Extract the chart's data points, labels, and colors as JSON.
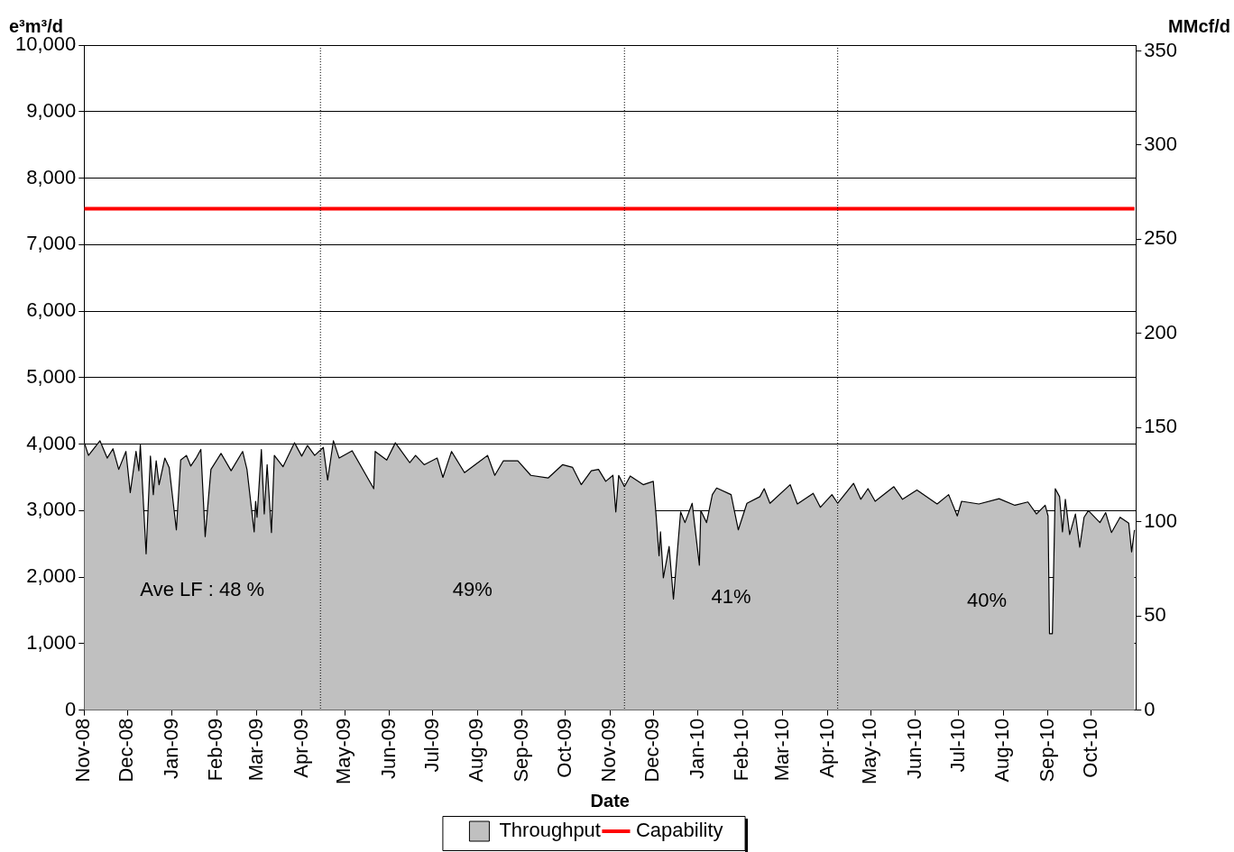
{
  "chart_data": {
    "type": "area",
    "xlabel": "Date",
    "ylabel": "e³m³/d",
    "y2label": "MMcf/d",
    "xlim": [
      "2008-11-01",
      "2010-11-01"
    ],
    "xticks": [
      {
        "value": "2008-11-01",
        "label": "Nov-08"
      },
      {
        "value": "2008-12-01",
        "label": "Dec-08"
      },
      {
        "value": "2009-01-01",
        "label": "Jan-09"
      },
      {
        "value": "2009-02-01",
        "label": "Feb-09"
      },
      {
        "value": "2009-03-01",
        "label": "Mar-09"
      },
      {
        "value": "2009-04-01",
        "label": "Apr-09"
      },
      {
        "value": "2009-05-01",
        "label": "May-09"
      },
      {
        "value": "2009-06-01",
        "label": "Jun-09"
      },
      {
        "value": "2009-07-01",
        "label": "Jul-09"
      },
      {
        "value": "2009-08-01",
        "label": "Aug-09"
      },
      {
        "value": "2009-09-01",
        "label": "Sep-09"
      },
      {
        "value": "2009-10-01",
        "label": "Oct-09"
      },
      {
        "value": "2009-11-01",
        "label": "Nov-09"
      },
      {
        "value": "2009-12-01",
        "label": "Dec-09"
      },
      {
        "value": "2010-01-01",
        "label": "Jan-10"
      },
      {
        "value": "2010-02-01",
        "label": "Feb-10"
      },
      {
        "value": "2010-03-01",
        "label": "Mar-10"
      },
      {
        "value": "2010-04-01",
        "label": "Apr-10"
      },
      {
        "value": "2010-05-01",
        "label": "May-10"
      },
      {
        "value": "2010-06-01",
        "label": "Jun-10"
      },
      {
        "value": "2010-07-01",
        "label": "Jul-10"
      },
      {
        "value": "2010-08-01",
        "label": "Aug-10"
      },
      {
        "value": "2010-09-01",
        "label": "Sep-10"
      },
      {
        "value": "2010-10-01",
        "label": "Oct-10"
      }
    ],
    "ylim": [
      0,
      10000
    ],
    "yticks": [
      {
        "value": 0,
        "label": "0"
      },
      {
        "value": 1000,
        "label": "1,000"
      },
      {
        "value": 2000,
        "label": "2,000"
      },
      {
        "value": 3000,
        "label": "3,000"
      },
      {
        "value": 4000,
        "label": "4,000"
      },
      {
        "value": 5000,
        "label": "5,000"
      },
      {
        "value": 6000,
        "label": "6,000"
      },
      {
        "value": 7000,
        "label": "7,000"
      },
      {
        "value": 8000,
        "label": "8,000"
      },
      {
        "value": 9000,
        "label": "9,000"
      },
      {
        "value": 10000,
        "label": "10,000"
      }
    ],
    "y2lim": [
      0,
      353.1
    ],
    "y2ticks": [
      0,
      50,
      100,
      150,
      200,
      250,
      300,
      350
    ],
    "grid": "y",
    "legend": "bottom",
    "series": [
      {
        "name": "Throughput",
        "type": "area",
        "color": "#c0c0c0",
        "x": [
          "2008-11-01",
          "2008-11-04",
          "2008-11-12",
          "2008-11-17",
          "2008-11-21",
          "2008-11-25",
          "2008-11-30",
          "2008-12-03",
          "2008-12-07",
          "2008-12-09",
          "2008-12-10",
          "2008-12-14",
          "2008-12-17",
          "2008-12-19",
          "2008-12-21",
          "2008-12-23",
          "2008-12-27",
          "2008-12-30",
          "2009-01-04",
          "2009-01-07",
          "2009-01-11",
          "2009-01-14",
          "2009-01-18",
          "2009-01-21",
          "2009-01-24",
          "2009-01-28",
          "2009-02-04",
          "2009-02-11",
          "2009-02-19",
          "2009-02-22",
          "2009-02-27",
          "2009-02-28",
          "2009-03-01",
          "2009-03-04",
          "2009-03-06",
          "2009-03-08",
          "2009-03-11",
          "2009-03-13",
          "2009-03-19",
          "2009-03-27",
          "2009-04-01",
          "2009-04-05",
          "2009-04-10",
          "2009-04-16",
          "2009-04-19",
          "2009-04-23",
          "2009-04-27",
          "2009-05-06",
          "2009-05-21",
          "2009-05-22",
          "2009-05-30",
          "2009-06-05",
          "2009-06-15",
          "2009-06-19",
          "2009-06-25",
          "2009-07-04",
          "2009-07-08",
          "2009-07-14",
          "2009-07-23",
          "2009-08-08",
          "2009-08-13",
          "2009-08-19",
          "2009-08-29",
          "2009-09-07",
          "2009-09-19",
          "2009-09-29",
          "2009-10-06",
          "2009-10-12",
          "2009-10-19",
          "2009-10-24",
          "2009-10-29",
          "2009-11-03",
          "2009-11-05",
          "2009-11-07",
          "2009-11-11",
          "2009-11-15",
          "2009-11-24",
          "2009-12-01",
          "2009-12-03",
          "2009-12-05",
          "2009-12-06",
          "2009-12-08",
          "2009-12-12",
          "2009-12-15",
          "2009-12-20",
          "2009-12-23",
          "2009-12-28",
          "2010-01-02",
          "2010-01-03",
          "2010-01-07",
          "2010-01-11",
          "2010-01-14",
          "2010-01-24",
          "2010-01-29",
          "2010-02-04",
          "2010-02-13",
          "2010-02-16",
          "2010-02-20",
          "2010-03-06",
          "2010-03-11",
          "2010-03-22",
          "2010-03-27",
          "2010-04-04",
          "2010-04-08",
          "2010-04-19",
          "2010-04-24",
          "2010-04-29",
          "2010-05-04",
          "2010-05-17",
          "2010-05-23",
          "2010-06-02",
          "2010-06-16",
          "2010-06-24",
          "2010-06-30",
          "2010-07-03",
          "2010-07-15",
          "2010-07-29",
          "2010-08-09",
          "2010-08-18",
          "2010-08-24",
          "2010-08-30",
          "2010-09-01",
          "2010-09-02",
          "2010-09-04",
          "2010-09-06",
          "2010-09-09",
          "2010-09-11",
          "2010-09-13",
          "2010-09-16",
          "2010-09-20",
          "2010-09-23",
          "2010-09-26",
          "2010-09-29",
          "2010-10-07",
          "2010-10-11",
          "2010-10-15",
          "2010-10-21",
          "2010-10-27",
          "2010-10-29",
          "2010-10-31"
        ],
        "values": [
          4030,
          3830,
          4050,
          3790,
          3930,
          3620,
          3890,
          3270,
          3890,
          3600,
          3990,
          2350,
          3820,
          3240,
          3750,
          3390,
          3790,
          3650,
          2710,
          3760,
          3830,
          3670,
          3800,
          3920,
          2610,
          3620,
          3860,
          3600,
          3890,
          3620,
          2680,
          3140,
          2900,
          3920,
          2950,
          3690,
          2670,
          3830,
          3660,
          4020,
          3820,
          3980,
          3830,
          3950,
          3460,
          4050,
          3790,
          3900,
          3330,
          3890,
          3760,
          4020,
          3720,
          3830,
          3690,
          3790,
          3500,
          3890,
          3570,
          3830,
          3530,
          3750,
          3750,
          3530,
          3490,
          3690,
          3650,
          3390,
          3600,
          3620,
          3440,
          3530,
          2980,
          3530,
          3360,
          3520,
          3390,
          3440,
          2920,
          2320,
          2680,
          1990,
          2460,
          1670,
          2980,
          2820,
          3110,
          2180,
          3000,
          2820,
          3240,
          3340,
          3240,
          2710,
          3110,
          3210,
          3330,
          3110,
          3390,
          3100,
          3260,
          3050,
          3240,
          3110,
          3410,
          3170,
          3330,
          3140,
          3360,
          3170,
          3310,
          3100,
          3240,
          2920,
          3140,
          3100,
          3180,
          3080,
          3130,
          2950,
          3080,
          2920,
          1150,
          1150,
          3330,
          3210,
          2680,
          3170,
          2640,
          2950,
          2450,
          2900,
          3000,
          2820,
          2970,
          2670,
          2900,
          2810,
          2380,
          2710
        ]
      },
      {
        "name": "Capability",
        "type": "line",
        "color": "#ff0000",
        "x": [
          "2008-11-01",
          "2010-10-31"
        ],
        "values": [
          7540,
          7540
        ]
      }
    ],
    "ref_lines": [
      {
        "axis": "x",
        "value": "2009-04-14",
        "line_style": "dotted",
        "color": "#000000"
      },
      {
        "axis": "x",
        "value": "2009-11-11",
        "line_style": "dotted",
        "color": "#000000"
      },
      {
        "axis": "x",
        "value": "2010-04-08",
        "line_style": "dotted",
        "color": "#000000"
      }
    ],
    "annotations": [
      "Ave LF : 48 %",
      "49%",
      "41%",
      "40%"
    ]
  }
}
